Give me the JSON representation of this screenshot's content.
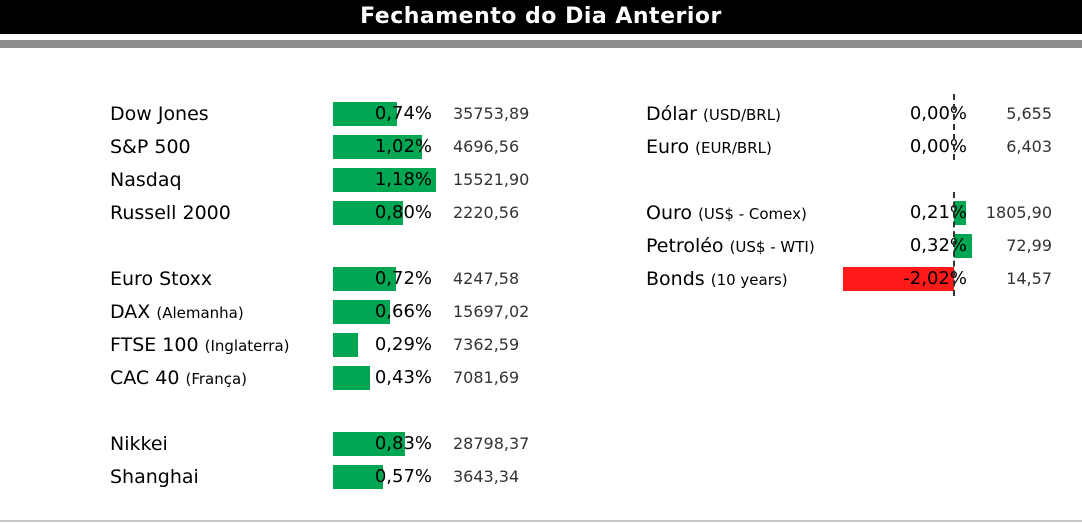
{
  "header": {
    "title": "Fechamento do Dia Anterior"
  },
  "indices": [
    {
      "name": "Dow Jones",
      "qualifier": "",
      "change_pct": 0.74,
      "change_label": "0,74%",
      "value": "35753,89"
    },
    {
      "name": "S&P 500",
      "qualifier": "",
      "change_pct": 1.02,
      "change_label": "1,02%",
      "value": "4696,56"
    },
    {
      "name": "Nasdaq",
      "qualifier": "",
      "change_pct": 1.18,
      "change_label": "1,18%",
      "value": "15521,90"
    },
    {
      "name": "Russell 2000",
      "qualifier": "",
      "change_pct": 0.8,
      "change_label": "0,80%",
      "value": "2220,56"
    },
    {
      "name": "Euro Stoxx",
      "qualifier": "",
      "change_pct": 0.72,
      "change_label": "0,72%",
      "value": "4247,58"
    },
    {
      "name": "DAX",
      "qualifier": "(Alemanha)",
      "change_pct": 0.66,
      "change_label": "0,66%",
      "value": "15697,02"
    },
    {
      "name": "FTSE 100",
      "qualifier": "(Inglaterra)",
      "change_pct": 0.29,
      "change_label": "0,29%",
      "value": "7362,59"
    },
    {
      "name": "CAC 40",
      "qualifier": "(França)",
      "change_pct": 0.43,
      "change_label": "0,43%",
      "value": "7081,69"
    },
    {
      "name": "Nikkei",
      "qualifier": "",
      "change_pct": 0.83,
      "change_label": "0,83%",
      "value": "28798,37"
    },
    {
      "name": "Shanghai",
      "qualifier": "",
      "change_pct": 0.57,
      "change_label": "0,57%",
      "value": "3643,34"
    }
  ],
  "currencies": [
    {
      "name": "Dólar",
      "qualifier": "(USD/BRL)",
      "change_pct": 0.0,
      "change_label": "0,00%",
      "value": "5,655"
    },
    {
      "name": "Euro",
      "qualifier": "(EUR/BRL)",
      "change_pct": 0.0,
      "change_label": "0,00%",
      "value": "6,403"
    }
  ],
  "commodities": [
    {
      "name": "Ouro",
      "qualifier": "(US$ - Comex)",
      "change_pct": 0.21,
      "change_label": "0,21%",
      "value": "1805,90"
    },
    {
      "name": "Petroléo",
      "qualifier": "(US$ - WTI)",
      "change_pct": 0.32,
      "change_label": "0,32%",
      "value": "72,99"
    },
    {
      "name": "Bonds",
      "qualifier": "(10 years)",
      "change_pct": -2.02,
      "change_label": "-2,02%",
      "value": "14,57"
    }
  ],
  "colors": {
    "positive": "#00a651",
    "negative": "#ff1a1a"
  }
}
